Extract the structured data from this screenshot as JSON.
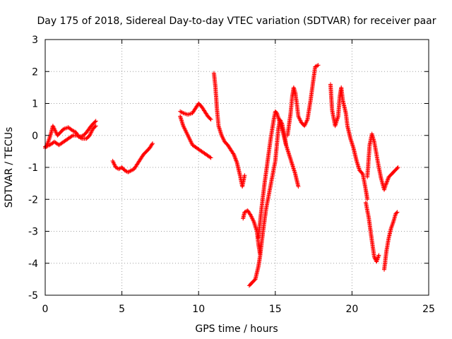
{
  "chart_data": {
    "type": "scatter",
    "title": "Day 175 of 2018, Sidereal Day-to-day VTEC variation (SDTVAR) for receiver paar",
    "xlabel": "GPS time / hours",
    "ylabel": "SDTVAR / TECUs",
    "xlim": [
      0,
      25
    ],
    "ylim": [
      -5,
      3
    ],
    "xticks": [
      0,
      5,
      10,
      15,
      20,
      25
    ],
    "yticks": [
      -5,
      -4,
      -3,
      -2,
      -1,
      0,
      1,
      2,
      3
    ],
    "grid": true,
    "marker": "plus",
    "color": "#ff0000",
    "segments": [
      [
        [
          0.0,
          -0.4
        ],
        [
          0.2,
          -0.2
        ],
        [
          0.4,
          0.1
        ],
        [
          0.5,
          0.3
        ],
        [
          0.6,
          0.2
        ],
        [
          0.8,
          0.0
        ],
        [
          1.0,
          0.1
        ],
        [
          1.2,
          0.2
        ],
        [
          1.5,
          0.25
        ],
        [
          1.8,
          0.15
        ],
        [
          2.0,
          0.1
        ],
        [
          2.2,
          -0.05
        ],
        [
          2.5,
          0.0
        ],
        [
          2.7,
          0.1
        ],
        [
          3.0,
          0.3
        ],
        [
          3.3,
          0.45
        ]
      ],
      [
        [
          0.0,
          -0.35
        ],
        [
          0.3,
          -0.3
        ],
        [
          0.6,
          -0.2
        ],
        [
          0.9,
          -0.3
        ],
        [
          1.2,
          -0.2
        ],
        [
          1.5,
          -0.1
        ],
        [
          1.8,
          0.0
        ],
        [
          2.1,
          0.0
        ],
        [
          2.4,
          -0.1
        ],
        [
          2.7,
          -0.1
        ],
        [
          2.9,
          0.0
        ],
        [
          3.1,
          0.2
        ],
        [
          3.3,
          0.3
        ]
      ],
      [
        [
          4.4,
          -0.8
        ],
        [
          4.6,
          -1.0
        ],
        [
          4.8,
          -1.05
        ],
        [
          5.0,
          -1.0
        ],
        [
          5.2,
          -1.1
        ],
        [
          5.4,
          -1.15
        ],
        [
          5.6,
          -1.1
        ],
        [
          5.8,
          -1.05
        ],
        [
          6.0,
          -0.9
        ],
        [
          6.2,
          -0.75
        ],
        [
          6.4,
          -0.6
        ],
        [
          6.6,
          -0.5
        ],
        [
          6.8,
          -0.4
        ],
        [
          7.0,
          -0.25
        ]
      ],
      [
        [
          8.8,
          0.75
        ],
        [
          9.0,
          0.7
        ],
        [
          9.3,
          0.65
        ],
        [
          9.6,
          0.7
        ],
        [
          9.8,
          0.85
        ],
        [
          10.0,
          1.0
        ],
        [
          10.2,
          0.9
        ],
        [
          10.4,
          0.75
        ],
        [
          10.6,
          0.6
        ],
        [
          10.8,
          0.5
        ]
      ],
      [
        [
          8.8,
          0.6
        ],
        [
          9.0,
          0.3
        ],
        [
          9.3,
          0.0
        ],
        [
          9.6,
          -0.3
        ],
        [
          9.9,
          -0.4
        ],
        [
          10.2,
          -0.5
        ],
        [
          10.5,
          -0.6
        ],
        [
          10.8,
          -0.7
        ]
      ],
      [
        [
          11.0,
          1.95
        ],
        [
          11.1,
          1.5
        ],
        [
          11.2,
          0.8
        ],
        [
          11.3,
          0.3
        ],
        [
          11.5,
          0.0
        ],
        [
          11.7,
          -0.2
        ],
        [
          11.9,
          -0.3
        ],
        [
          12.1,
          -0.45
        ],
        [
          12.3,
          -0.6
        ],
        [
          12.5,
          -0.85
        ],
        [
          12.7,
          -1.25
        ],
        [
          12.85,
          -1.6
        ],
        [
          13.0,
          -1.25
        ]
      ],
      [
        [
          12.9,
          -2.6
        ],
        [
          13.0,
          -2.4
        ],
        [
          13.2,
          -2.35
        ],
        [
          13.4,
          -2.5
        ],
        [
          13.6,
          -2.7
        ],
        [
          13.8,
          -3.0
        ],
        [
          13.9,
          -3.4
        ],
        [
          14.0,
          -3.7
        ]
      ],
      [
        [
          13.3,
          -4.7
        ],
        [
          13.5,
          -4.6
        ],
        [
          13.7,
          -4.5
        ],
        [
          13.8,
          -4.3
        ],
        [
          13.9,
          -4.1
        ],
        [
          14.0,
          -3.8
        ],
        [
          14.2,
          -3.0
        ],
        [
          14.4,
          -2.3
        ],
        [
          14.6,
          -1.8
        ],
        [
          14.8,
          -1.3
        ],
        [
          15.0,
          -0.8
        ],
        [
          15.1,
          -0.3
        ],
        [
          15.2,
          0.2
        ],
        [
          15.3,
          0.5
        ],
        [
          15.45,
          0.35
        ],
        [
          15.6,
          0.0
        ],
        [
          15.7,
          -0.3
        ]
      ],
      [
        [
          13.9,
          -3.2
        ],
        [
          14.1,
          -2.3
        ],
        [
          14.3,
          -1.5
        ],
        [
          14.5,
          -0.8
        ],
        [
          14.7,
          -0.1
        ],
        [
          14.9,
          0.5
        ],
        [
          15.0,
          0.75
        ],
        [
          15.1,
          0.7
        ],
        [
          15.3,
          0.4
        ],
        [
          15.5,
          0.1
        ],
        [
          15.7,
          -0.3
        ],
        [
          15.9,
          -0.6
        ],
        [
          16.1,
          -0.9
        ],
        [
          16.3,
          -1.2
        ],
        [
          16.5,
          -1.6
        ]
      ],
      [
        [
          15.8,
          0.0
        ],
        [
          16.0,
          0.7
        ],
        [
          16.1,
          1.2
        ],
        [
          16.2,
          1.5
        ],
        [
          16.3,
          1.35
        ],
        [
          16.4,
          1.0
        ],
        [
          16.5,
          0.6
        ],
        [
          16.7,
          0.4
        ],
        [
          16.9,
          0.3
        ],
        [
          17.1,
          0.5
        ],
        [
          17.3,
          1.1
        ],
        [
          17.5,
          1.8
        ],
        [
          17.6,
          2.15
        ],
        [
          17.8,
          2.2
        ]
      ],
      [
        [
          18.6,
          1.6
        ],
        [
          18.7,
          0.8
        ],
        [
          18.9,
          0.3
        ],
        [
          19.1,
          0.6
        ],
        [
          19.2,
          1.2
        ],
        [
          19.3,
          1.5
        ],
        [
          19.4,
          1.1
        ],
        [
          19.6,
          0.7
        ],
        [
          19.7,
          0.3
        ],
        [
          19.9,
          -0.1
        ],
        [
          20.1,
          -0.4
        ],
        [
          20.3,
          -0.8
        ],
        [
          20.5,
          -1.1
        ],
        [
          20.7,
          -1.2
        ],
        [
          20.8,
          -1.45
        ],
        [
          20.9,
          -1.7
        ],
        [
          21.0,
          -2.0
        ]
      ],
      [
        [
          20.9,
          -2.1
        ],
        [
          21.1,
          -2.6
        ],
        [
          21.3,
          -3.3
        ],
        [
          21.45,
          -3.8
        ],
        [
          21.6,
          -3.95
        ],
        [
          21.75,
          -3.75
        ]
      ],
      [
        [
          21.0,
          -1.3
        ],
        [
          21.15,
          -0.3
        ],
        [
          21.3,
          0.05
        ],
        [
          21.45,
          -0.2
        ],
        [
          21.6,
          -0.6
        ],
        [
          21.75,
          -1.0
        ],
        [
          21.9,
          -1.35
        ],
        [
          22.1,
          -1.7
        ],
        [
          22.2,
          -1.55
        ],
        [
          22.4,
          -1.3
        ],
        [
          22.6,
          -1.2
        ],
        [
          22.8,
          -1.1
        ],
        [
          23.0,
          -1.0
        ]
      ],
      [
        [
          22.1,
          -4.2
        ],
        [
          22.25,
          -3.6
        ],
        [
          22.4,
          -3.2
        ],
        [
          22.55,
          -2.9
        ],
        [
          22.7,
          -2.7
        ],
        [
          22.85,
          -2.45
        ],
        [
          22.95,
          -2.4
        ]
      ]
    ]
  }
}
